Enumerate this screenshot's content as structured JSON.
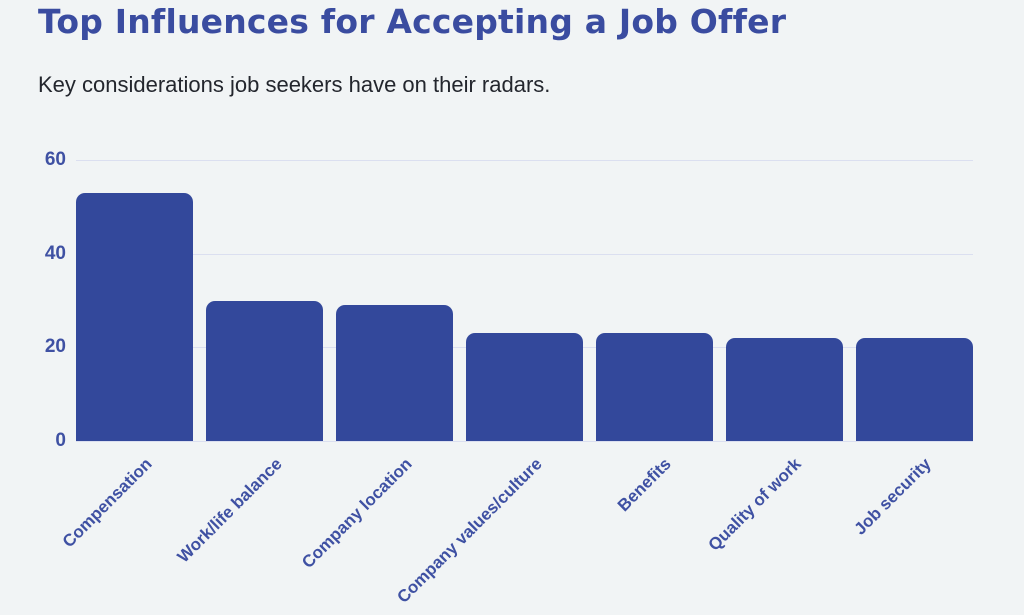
{
  "header": {
    "title": "Top Influences for Accepting a Job Offer",
    "subtitle": "Key considerations job seekers have on their radars."
  },
  "chart_data": {
    "type": "bar",
    "title": "Top Influences for Accepting a Job Offer",
    "subtitle": "Key considerations job seekers have on their radars.",
    "categories": [
      "Compensation",
      "Work/life balance",
      "Company location",
      "Company values/culture",
      "Benefits",
      "Quality of work",
      "Job security"
    ],
    "values": [
      53,
      30,
      29,
      23,
      23,
      22,
      22
    ],
    "xlabel": "",
    "ylabel": "",
    "y_ticks": [
      0,
      20,
      40,
      60
    ],
    "ylim": [
      0,
      60
    ],
    "grid": true,
    "legend": false,
    "bar_color": "#33489b",
    "axis_label_color": "#3f51a3",
    "gridline_color": "#dbdff0",
    "background_color": "#f1f4f5",
    "title_color": "#3a4ca0",
    "subtitle_color": "#23262d"
  }
}
